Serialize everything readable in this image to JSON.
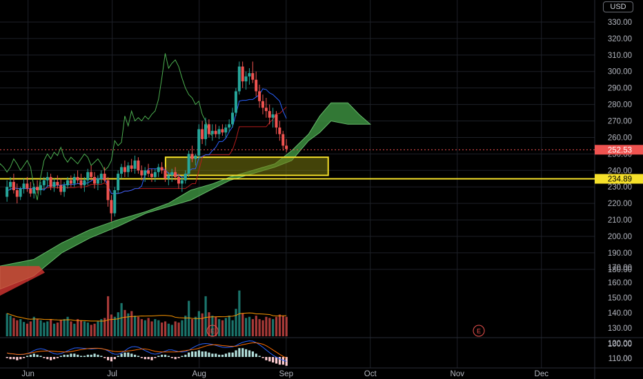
{
  "currency_label": "USD",
  "price_tags": {
    "last_price": "252.53",
    "level_price": "234.89"
  },
  "earnings_markers": [
    "E",
    "E"
  ],
  "colors": {
    "up": "#26a69a",
    "down": "#ef5350",
    "cloud_bull": "#43a047",
    "cloud_bear": "#e53935",
    "zone": "#f5e02a",
    "tenkan": "#2962ff",
    "kijun": "#b71c1c",
    "lagging": "#4caf50",
    "grid": "#1e2128",
    "volume_ma": "#ff9800"
  },
  "chart_data": [
    {
      "type": "candlestick",
      "y_ticks": [
        "330.00",
        "320.00",
        "310.00",
        "300.00",
        "290.00",
        "280.00",
        "270.00",
        "260.00",
        "250.00",
        "240.00",
        "230.00",
        "220.00",
        "210.00",
        "200.00",
        "190.00",
        "180.00",
        "170.00",
        "160.00",
        "150.00",
        "140.00",
        "130.00",
        "120.00",
        "110.00",
        "100.00",
        "0.00"
      ],
      "x_ticks": [
        "Jun",
        "Jul",
        "Aug",
        "Sep",
        "Oct",
        "Nov",
        "Dec"
      ],
      "x_tick_days": [
        8,
        38,
        69,
        100,
        130,
        161,
        191
      ],
      "ylim_main": [
        172,
        335
      ],
      "candles_start_day": 0,
      "candles": [
        [
          224,
          234,
          221,
          230
        ],
        [
          230,
          236,
          228,
          233
        ],
        [
          233,
          238,
          226,
          228
        ],
        [
          228,
          232,
          220,
          224
        ],
        [
          224,
          230,
          222,
          229
        ],
        [
          229,
          235,
          226,
          232
        ],
        [
          232,
          236,
          227,
          229
        ],
        [
          229,
          233,
          224,
          226
        ],
        [
          226,
          232,
          223,
          230
        ],
        [
          230,
          234,
          226,
          228
        ],
        [
          228,
          233,
          225,
          231
        ],
        [
          231,
          236,
          228,
          234
        ],
        [
          234,
          239,
          230,
          236
        ],
        [
          236,
          238,
          228,
          230
        ],
        [
          230,
          235,
          227,
          233
        ],
        [
          233,
          237,
          229,
          231
        ],
        [
          231,
          235,
          225,
          227
        ],
        [
          227,
          233,
          224,
          231
        ],
        [
          231,
          236,
          229,
          234
        ],
        [
          234,
          237,
          230,
          232
        ],
        [
          232,
          238,
          230,
          236
        ],
        [
          236,
          240,
          232,
          234
        ],
        [
          234,
          238,
          229,
          231
        ],
        [
          231,
          236,
          227,
          234
        ],
        [
          234,
          241,
          231,
          239
        ],
        [
          239,
          243,
          234,
          236
        ],
        [
          236,
          239,
          229,
          232
        ],
        [
          232,
          237,
          228,
          235
        ],
        [
          235,
          240,
          232,
          238
        ],
        [
          238,
          242,
          233,
          234
        ],
        [
          234,
          236,
          218,
          222
        ],
        [
          222,
          225,
          209,
          214
        ],
        [
          214,
          230,
          212,
          228
        ],
        [
          228,
          240,
          226,
          238
        ],
        [
          238,
          244,
          235,
          242
        ],
        [
          242,
          246,
          236,
          239
        ],
        [
          239,
          245,
          236,
          243
        ],
        [
          243,
          247,
          239,
          241
        ],
        [
          241,
          249,
          238,
          246
        ],
        [
          246,
          248,
          238,
          240
        ],
        [
          240,
          243,
          234,
          237
        ],
        [
          237,
          242,
          233,
          240
        ],
        [
          240,
          244,
          236,
          238
        ],
        [
          238,
          241,
          233,
          236
        ],
        [
          236,
          241,
          233,
          239
        ],
        [
          239,
          244,
          236,
          242
        ],
        [
          242,
          245,
          238,
          240
        ],
        [
          240,
          242,
          233,
          235
        ],
        [
          235,
          239,
          231,
          237
        ],
        [
          237,
          241,
          233,
          239
        ],
        [
          239,
          242,
          234,
          236
        ],
        [
          236,
          238,
          229,
          232
        ],
        [
          232,
          236,
          227,
          234
        ],
        [
          234,
          240,
          232,
          238
        ],
        [
          238,
          252,
          236,
          250
        ],
        [
          250,
          255,
          245,
          247
        ],
        [
          247,
          250,
          243,
          249
        ],
        [
          249,
          268,
          247,
          265
        ],
        [
          265,
          270,
          256,
          259
        ],
        [
          259,
          272,
          255,
          268
        ],
        [
          268,
          271,
          260,
          262
        ],
        [
          262,
          268,
          258,
          264
        ],
        [
          264,
          268,
          260,
          262
        ],
        [
          262,
          267,
          259,
          265
        ],
        [
          265,
          268,
          261,
          263
        ],
        [
          263,
          268,
          260,
          266
        ],
        [
          266,
          271,
          263,
          268
        ],
        [
          268,
          278,
          266,
          275
        ],
        [
          275,
          290,
          273,
          288
        ],
        [
          288,
          306,
          286,
          303
        ],
        [
          303,
          306,
          290,
          294
        ],
        [
          294,
          300,
          289,
          297
        ],
        [
          297,
          302,
          292,
          299
        ],
        [
          299,
          306,
          293,
          295
        ],
        [
          295,
          300,
          285,
          288
        ],
        [
          288,
          292,
          278,
          282
        ],
        [
          282,
          286,
          274,
          278
        ],
        [
          278,
          284,
          272,
          276
        ],
        [
          276,
          280,
          268,
          272
        ],
        [
          272,
          278,
          266,
          274
        ],
        [
          274,
          276,
          262,
          266
        ],
        [
          266,
          270,
          258,
          262
        ],
        [
          262,
          264,
          252,
          255
        ],
        [
          255,
          259,
          251,
          253
        ]
      ],
      "candle_day_step": 1.2,
      "ichimoku_cloud_top": [
        [
          -2,
          182
        ],
        [
          10,
          186
        ],
        [
          20,
          196
        ],
        [
          30,
          204
        ],
        [
          40,
          210
        ],
        [
          50,
          215
        ],
        [
          58,
          220
        ],
        [
          66,
          228
        ],
        [
          74,
          232
        ],
        [
          80,
          236
        ],
        [
          88,
          240
        ],
        [
          96,
          244
        ],
        [
          102,
          252
        ],
        [
          108,
          262
        ],
        [
          112,
          273
        ],
        [
          116,
          281
        ],
        [
          122,
          281
        ],
        [
          126,
          274
        ],
        [
          130,
          268
        ]
      ],
      "ichimoku_cloud_bottom": [
        [
          -2,
          168
        ],
        [
          10,
          176
        ],
        [
          20,
          190
        ],
        [
          30,
          199
        ],
        [
          40,
          206
        ],
        [
          50,
          214
        ],
        [
          58,
          218
        ],
        [
          66,
          222
        ],
        [
          74,
          229
        ],
        [
          80,
          234
        ],
        [
          88,
          238
        ],
        [
          96,
          242
        ],
        [
          102,
          246
        ],
        [
          108,
          258
        ],
        [
          112,
          263
        ],
        [
          116,
          270
        ],
        [
          122,
          268
        ],
        [
          126,
          268
        ],
        [
          130,
          268
        ]
      ],
      "bear_cloud_region": [
        [
          -2,
          182
        ],
        [
          12,
          182
        ],
        [
          14,
          178
        ],
        [
          -2,
          164
        ]
      ],
      "resistance_zone": {
        "x_from_day": 57,
        "x_to_day": 115,
        "y_low": 237,
        "y_high": 248
      },
      "horizontal_level": 234.89,
      "last_price_value": 252.53
    },
    {
      "type": "bar",
      "name": "volume",
      "ylim": [
        0,
        100
      ],
      "values": [
        40,
        36,
        32,
        28,
        30,
        25,
        22,
        26,
        34,
        30,
        28,
        24,
        26,
        30,
        22,
        24,
        28,
        30,
        34,
        26,
        22,
        30,
        28,
        26,
        24,
        20,
        22,
        26,
        30,
        32,
        70,
        38,
        34,
        42,
        58,
        46,
        40,
        44,
        36,
        34,
        30,
        28,
        32,
        26,
        30,
        28,
        24,
        26,
        22,
        20,
        26,
        24,
        28,
        36,
        62,
        30,
        34,
        44,
        40,
        70,
        42,
        36,
        34,
        30,
        28,
        32,
        36,
        28,
        48,
        80,
        40,
        32,
        34,
        30,
        36,
        30,
        28,
        34,
        32,
        30,
        34,
        38,
        36,
        34
      ]
    },
    {
      "type": "line",
      "name": "oscillator",
      "y_ticks": [
        "0.00"
      ],
      "hist": [
        -1,
        -2,
        -2,
        -3,
        -2,
        -1,
        1,
        2,
        3,
        2,
        1,
        -1,
        -2,
        -3,
        -2,
        -1,
        1,
        2,
        2,
        3,
        3,
        2,
        1,
        1,
        2,
        2,
        3,
        2,
        1,
        -1,
        -3,
        -4,
        -2,
        1,
        3,
        4,
        4,
        3,
        2,
        1,
        -1,
        -2,
        -2,
        -3,
        -1,
        1,
        2,
        2,
        1,
        -1,
        -2,
        -1,
        1,
        2,
        4,
        5,
        5,
        6,
        5,
        5,
        4,
        3,
        3,
        2,
        2,
        3,
        4,
        4,
        6,
        8,
        8,
        7,
        6,
        5,
        3,
        1,
        -1,
        -3,
        -4,
        -5,
        -6,
        -7,
        -7,
        -8
      ]
    }
  ]
}
